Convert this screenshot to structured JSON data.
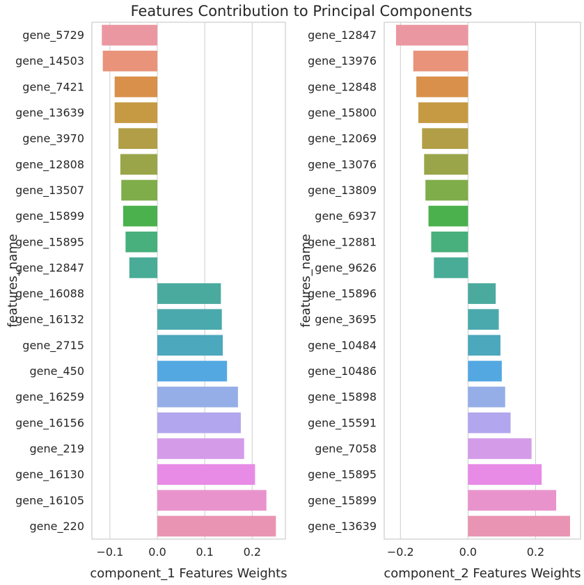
{
  "title": "Features Contribution to Principal Components",
  "chart_data": [
    {
      "type": "bar",
      "orientation": "horizontal",
      "xlabel": "component_1 Features Weights",
      "ylabel": "features_name",
      "xlim": [
        -0.138,
        0.27
      ],
      "xticks": [
        -0.1,
        0.0,
        0.1,
        0.2
      ],
      "xtick_labels": [
        "−0.1",
        "0.0",
        "0.1",
        "0.2"
      ],
      "grid": true,
      "categories": [
        "gene_5729",
        "gene_14503",
        "gene_7421",
        "gene_13639",
        "gene_3970",
        "gene_12808",
        "gene_13507",
        "gene_15899",
        "gene_15895",
        "gene_12847",
        "gene_16088",
        "gene_16132",
        "gene_2715",
        "gene_450",
        "gene_16259",
        "gene_16156",
        "gene_219",
        "gene_16130",
        "gene_16105",
        "gene_220"
      ],
      "values": [
        -0.117,
        -0.115,
        -0.09,
        -0.09,
        -0.082,
        -0.078,
        -0.076,
        -0.072,
        -0.067,
        -0.059,
        0.134,
        0.136,
        0.138,
        0.147,
        0.17,
        0.176,
        0.183,
        0.206,
        0.23,
        0.25
      ],
      "colors": [
        "#eb97a1",
        "#e9937b",
        "#d8904a",
        "#c69a43",
        "#b19e46",
        "#9aa54a",
        "#7fad4a",
        "#4bb14d",
        "#47b07d",
        "#48ac97",
        "#4aaa9e",
        "#4aa9ad",
        "#4ba8bd",
        "#54a8e1",
        "#95aee7",
        "#b2a6ee",
        "#d49be9",
        "#e78be6",
        "#e993cc",
        "#e994b2"
      ]
    },
    {
      "type": "bar",
      "orientation": "horizontal",
      "xlabel": "component_2 Features Weights",
      "ylabel": "features_name",
      "xlim": [
        -0.248,
        0.333
      ],
      "xticks": [
        -0.2,
        0.0,
        0.2
      ],
      "xtick_labels": [
        "−0.2",
        "0.0",
        "0.2"
      ],
      "grid": true,
      "categories": [
        "gene_12847",
        "gene_13976",
        "gene_12848",
        "gene_15800",
        "gene_12069",
        "gene_13076",
        "gene_13809",
        "gene_6937",
        "gene_12881",
        "gene_9626",
        "gene_15896",
        "gene_3695",
        "gene_10484",
        "gene_10486",
        "gene_15898",
        "gene_15591",
        "gene_7058",
        "gene_15895",
        "gene_15899",
        "gene_13639"
      ],
      "values": [
        -0.213,
        -0.162,
        -0.153,
        -0.147,
        -0.136,
        -0.13,
        -0.126,
        -0.117,
        -0.109,
        -0.101,
        0.082,
        0.091,
        0.096,
        0.1,
        0.11,
        0.126,
        0.188,
        0.218,
        0.261,
        0.302
      ],
      "colors": [
        "#eb97a1",
        "#e9937b",
        "#d8904a",
        "#c69a43",
        "#b19e46",
        "#9aa54a",
        "#7fad4a",
        "#4bb14d",
        "#47b07d",
        "#48ac97",
        "#4aaa9e",
        "#4aa9ad",
        "#4ba8bd",
        "#54a8e1",
        "#95aee7",
        "#b2a6ee",
        "#d49be9",
        "#e78be6",
        "#e993cc",
        "#e994b2"
      ]
    }
  ]
}
